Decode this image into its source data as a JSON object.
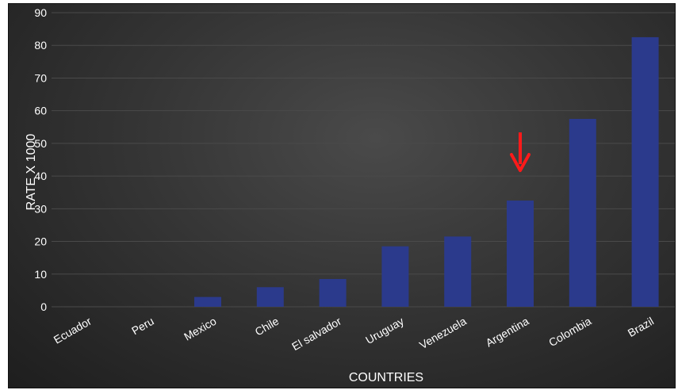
{
  "chart_data": {
    "type": "bar",
    "title": "",
    "xlabel": "COUNTRIES",
    "ylabel": "RATE X 1000",
    "categories": [
      "Ecuador",
      "Peru",
      "Mexico",
      "Chile",
      "El salvador",
      "Uruguay",
      "Venezuela",
      "Argentina",
      "Colombia",
      "Brazil"
    ],
    "values": [
      0,
      0,
      3,
      6,
      8.5,
      18.5,
      21.5,
      32.5,
      57.5,
      82.5
    ],
    "yticks": [
      0,
      10,
      20,
      30,
      40,
      50,
      60,
      70,
      80,
      90
    ],
    "ylim": [
      0,
      90
    ],
    "grid": true,
    "legend": "none",
    "highlight": {
      "category": "Argentina",
      "marker": "down-arrow"
    },
    "colors": {
      "bar": "#2b3a8c",
      "arrow": "#ff1a1a",
      "grid": "#4a4a4a",
      "text": "#ffffff"
    }
  }
}
